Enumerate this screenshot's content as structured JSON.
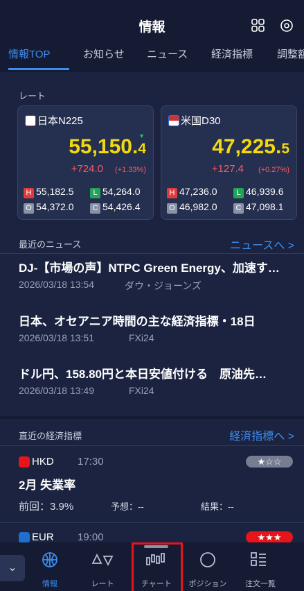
{
  "header": {
    "title": "情報"
  },
  "tabs": [
    "情報TOP",
    "お知らせ",
    "ニュース",
    "経済指標",
    "調整額"
  ],
  "rates": {
    "title": "レート",
    "ohlc_labels": [
      "H",
      "L",
      "O",
      "C"
    ],
    "cards": [
      {
        "name": "日本N225",
        "price": "55,150.4",
        "change": "+724.0",
        "change_pct": "(+1.33%)",
        "high": "55,182.5",
        "low": "54,264.0",
        "open": "54,372.0",
        "close": "54,426.4"
      },
      {
        "name": "米国D30",
        "price": "47,225.5",
        "change": "+127.4",
        "change_pct": "(+0.27%)",
        "high": "47,236.0",
        "low": "46,939.6",
        "open": "46,982.0",
        "close": "47,098.1"
      }
    ]
  },
  "news": {
    "title": "最近のニュース",
    "link": "ニュースへ >",
    "items": [
      {
        "headline": "DJ-【市場の声】NTPC Green Energy、加速す…",
        "date": "2026/03/18 13:54",
        "source": "ダウ・ジョーンズ"
      },
      {
        "headline": "日本、オセアニア時間の主な経済指標・18日",
        "date": "2026/03/18 13:51",
        "source": "FXi24"
      },
      {
        "headline": "ドル円、158.80円と本日安値付ける　原油先…",
        "date": "2026/03/18 13:49",
        "source": "FXi24"
      }
    ]
  },
  "indicators": {
    "title": "直近の経済指標",
    "link": "経済指標へ >",
    "items": [
      {
        "currency": "HKD",
        "time": "17:30",
        "rating": "★☆☆",
        "name": "2月 失業率",
        "previous": "前回：3.9%",
        "forecast": "予想：--",
        "result": "結果：--"
      },
      {
        "currency": "EUR",
        "time": "19:00",
        "rating": "★★★"
      }
    ]
  },
  "nav": [
    "情報",
    "レート",
    "チャート",
    "ポジション",
    "注文一覧"
  ]
}
